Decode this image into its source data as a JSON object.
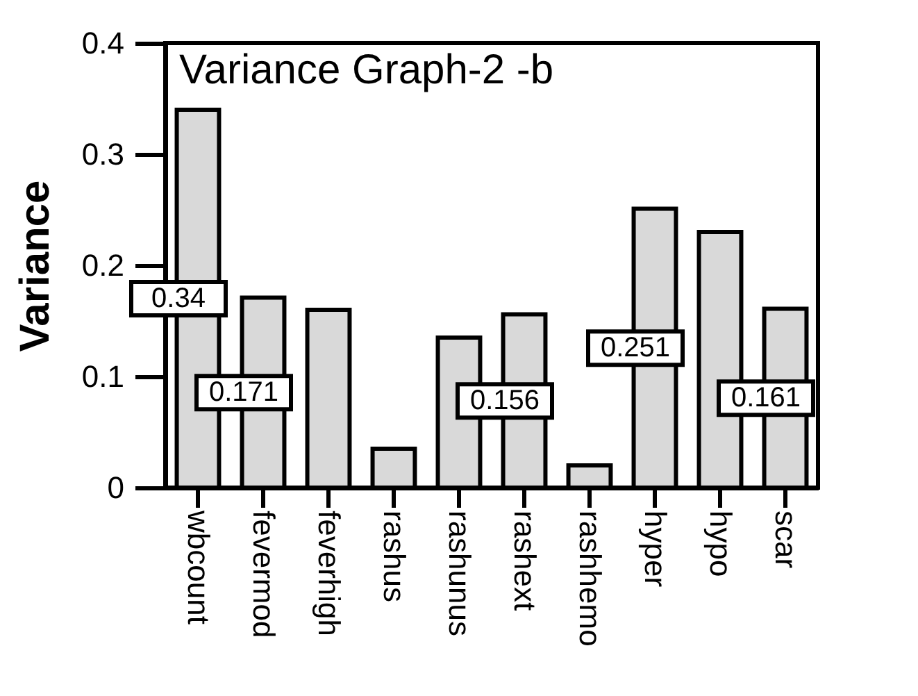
{
  "chart_data": {
    "type": "bar",
    "title": "Variance Graph-2 -b",
    "ylabel": "Variance",
    "categories": [
      "wbcount",
      "fevermod",
      "feverhigh",
      "rashus",
      "rashunus",
      "rashext",
      "rashhemo",
      "hyper",
      "hypo",
      "scar"
    ],
    "values": [
      0.34,
      0.171,
      0.16,
      0.035,
      0.135,
      0.156,
      0.02,
      0.251,
      0.23,
      0.161
    ],
    "value_labels": [
      "0.34",
      "0.171",
      null,
      null,
      null,
      "0.156",
      null,
      "0.251",
      null,
      "0.161"
    ],
    "color": "#d9d9d9",
    "ylim": [
      0,
      0.4
    ],
    "yticks": [
      0,
      0.1,
      0.2,
      0.3,
      0.4
    ],
    "grid": false
  }
}
